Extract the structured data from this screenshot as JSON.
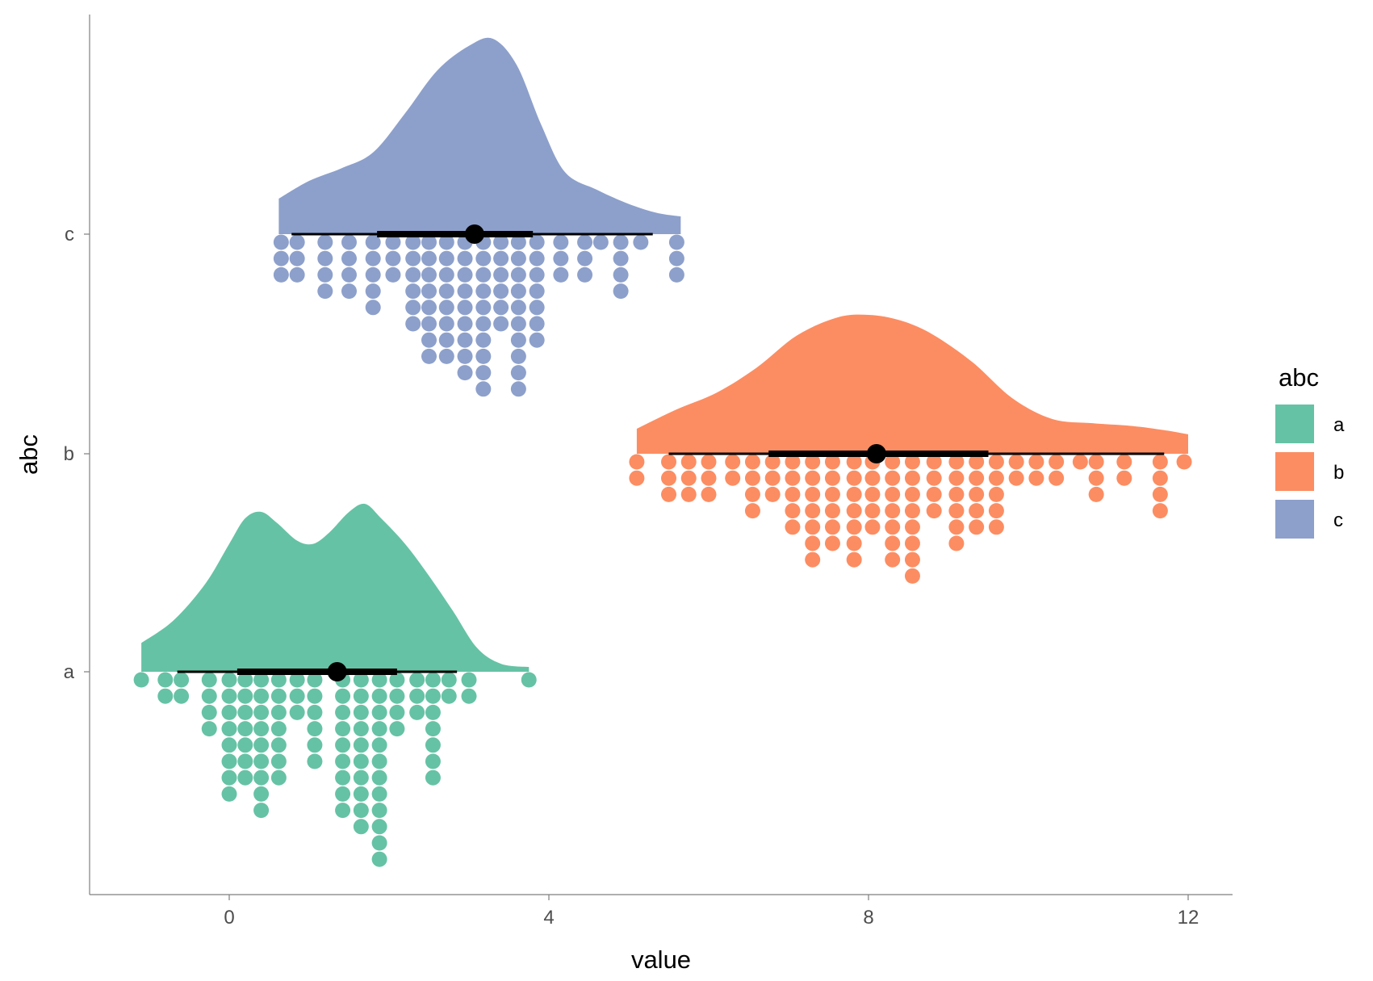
{
  "chart_data": {
    "type": "raincloud (half-eye density + interval + dotplot)",
    "xlabel": "value",
    "ylabel": "abc",
    "xlim": [
      -1.75,
      12.65
    ],
    "x_ticks": [
      0,
      4,
      8,
      12
    ],
    "x_tick_labels": [
      "0",
      "4",
      "8",
      "12"
    ],
    "categories": [
      "a",
      "b",
      "c"
    ],
    "grid": false,
    "legend": {
      "title": "abc",
      "position": "right",
      "items": [
        "a",
        "b",
        "c"
      ]
    },
    "colors": {
      "a": "#66c2a5",
      "b": "#fc8d62",
      "c": "#8da0cb"
    },
    "series": [
      {
        "name": "a",
        "point_estimate": 1.35,
        "interval_inner": [
          0.1,
          2.1
        ],
        "interval_outer": [
          -0.65,
          2.85
        ],
        "density": {
          "x": [
            -1.1,
            -0.7,
            -0.3,
            0.0,
            0.2,
            0.4,
            0.6,
            0.85,
            1.05,
            1.25,
            1.5,
            1.7,
            1.9,
            2.2,
            2.5,
            2.8,
            3.1,
            3.4,
            3.75
          ],
          "y": [
            0.18,
            0.32,
            0.55,
            0.8,
            0.96,
            1.0,
            0.93,
            0.82,
            0.8,
            0.87,
            1.0,
            1.05,
            0.96,
            0.8,
            0.6,
            0.38,
            0.15,
            0.05,
            0.03
          ]
        },
        "dots": [
          {
            "x": -1.1,
            "n": 1
          },
          {
            "x": -0.8,
            "n": 2
          },
          {
            "x": -0.6,
            "n": 2
          },
          {
            "x": -0.25,
            "n": 4
          },
          {
            "x": 0.0,
            "n": 8
          },
          {
            "x": 0.2,
            "n": 7
          },
          {
            "x": 0.4,
            "n": 9
          },
          {
            "x": 0.62,
            "n": 7
          },
          {
            "x": 0.85,
            "n": 3
          },
          {
            "x": 1.07,
            "n": 6
          },
          {
            "x": 1.42,
            "n": 9
          },
          {
            "x": 1.65,
            "n": 10
          },
          {
            "x": 1.88,
            "n": 12
          },
          {
            "x": 2.1,
            "n": 4
          },
          {
            "x": 2.35,
            "n": 3
          },
          {
            "x": 2.55,
            "n": 7
          },
          {
            "x": 2.75,
            "n": 2
          },
          {
            "x": 3.0,
            "n": 2
          },
          {
            "x": 3.75,
            "n": 1
          }
        ]
      },
      {
        "name": "b",
        "point_estimate": 8.1,
        "interval_inner": [
          6.75,
          9.5
        ],
        "interval_outer": [
          5.5,
          11.7
        ],
        "density": {
          "x": [
            5.1,
            5.6,
            6.1,
            6.6,
            7.1,
            7.6,
            8.0,
            8.4,
            8.8,
            9.3,
            9.8,
            10.3,
            10.8,
            11.3,
            11.7,
            12.0
          ],
          "y": [
            0.18,
            0.32,
            0.44,
            0.62,
            0.85,
            0.98,
            1.0,
            0.96,
            0.86,
            0.66,
            0.4,
            0.25,
            0.22,
            0.2,
            0.17,
            0.14
          ]
        },
        "dots": [
          {
            "x": 5.1,
            "n": 2
          },
          {
            "x": 5.5,
            "n": 3
          },
          {
            "x": 5.75,
            "n": 3
          },
          {
            "x": 6.0,
            "n": 3
          },
          {
            "x": 6.3,
            "n": 2
          },
          {
            "x": 6.55,
            "n": 4
          },
          {
            "x": 6.8,
            "n": 3
          },
          {
            "x": 7.05,
            "n": 5
          },
          {
            "x": 7.3,
            "n": 7
          },
          {
            "x": 7.55,
            "n": 6
          },
          {
            "x": 7.82,
            "n": 7
          },
          {
            "x": 8.05,
            "n": 5
          },
          {
            "x": 8.3,
            "n": 7
          },
          {
            "x": 8.55,
            "n": 8
          },
          {
            "x": 8.82,
            "n": 4
          },
          {
            "x": 9.1,
            "n": 6
          },
          {
            "x": 9.35,
            "n": 5
          },
          {
            "x": 9.6,
            "n": 5
          },
          {
            "x": 9.85,
            "n": 2
          },
          {
            "x": 10.1,
            "n": 2
          },
          {
            "x": 10.35,
            "n": 2
          },
          {
            "x": 10.65,
            "n": 1
          },
          {
            "x": 10.85,
            "n": 3
          },
          {
            "x": 11.2,
            "n": 2
          },
          {
            "x": 11.65,
            "n": 4
          },
          {
            "x": 11.95,
            "n": 1
          }
        ]
      },
      {
        "name": "c",
        "point_estimate": 3.07,
        "interval_inner": [
          1.85,
          3.8
        ],
        "interval_outer": [
          0.78,
          5.3
        ],
        "density": {
          "x": [
            0.62,
            1.0,
            1.4,
            1.8,
            2.2,
            2.6,
            3.0,
            3.3,
            3.6,
            3.9,
            4.2,
            4.6,
            5.0,
            5.35,
            5.65
          ],
          "y": [
            0.2,
            0.3,
            0.37,
            0.46,
            0.68,
            0.92,
            1.06,
            1.1,
            0.95,
            0.62,
            0.35,
            0.25,
            0.17,
            0.12,
            0.1
          ]
        },
        "dots": [
          {
            "x": 0.65,
            "n": 3
          },
          {
            "x": 0.85,
            "n": 3
          },
          {
            "x": 1.2,
            "n": 4
          },
          {
            "x": 1.5,
            "n": 4
          },
          {
            "x": 1.8,
            "n": 5
          },
          {
            "x": 2.05,
            "n": 3
          },
          {
            "x": 2.3,
            "n": 6
          },
          {
            "x": 2.5,
            "n": 8
          },
          {
            "x": 2.72,
            "n": 8
          },
          {
            "x": 2.95,
            "n": 9
          },
          {
            "x": 3.18,
            "n": 10
          },
          {
            "x": 3.4,
            "n": 6
          },
          {
            "x": 3.62,
            "n": 10
          },
          {
            "x": 3.85,
            "n": 7
          },
          {
            "x": 4.15,
            "n": 3
          },
          {
            "x": 4.45,
            "n": 3
          },
          {
            "x": 4.65,
            "n": 1
          },
          {
            "x": 4.9,
            "n": 4
          },
          {
            "x": 5.15,
            "n": 1
          },
          {
            "x": 5.6,
            "n": 3
          }
        ]
      }
    ]
  }
}
